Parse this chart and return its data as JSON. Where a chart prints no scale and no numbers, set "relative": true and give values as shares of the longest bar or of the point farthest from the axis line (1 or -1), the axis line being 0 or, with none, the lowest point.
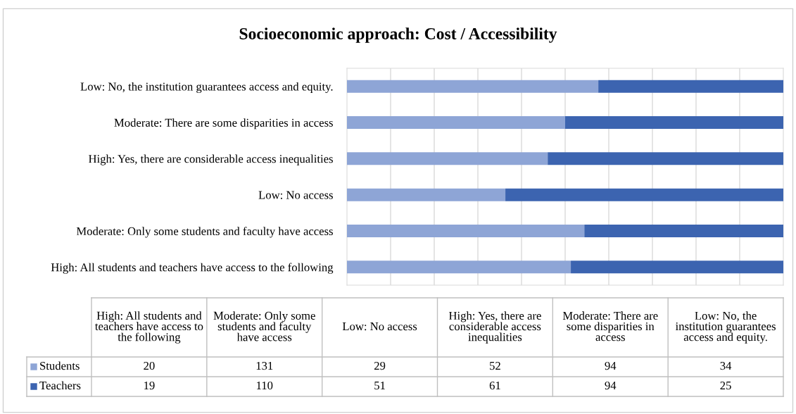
{
  "chart_data": [
    {
      "type": "bar",
      "orientation": "horizontal",
      "stacked": true,
      "relative": true,
      "title": "Socioeconomic approach: Cost / Accessibility",
      "categories": [
        "Low: No, the institution guarantees access and equity.",
        "Moderate: There are some disparities in access",
        "High: Yes, there are considerable access inequalities",
        "Low: No access",
        "Moderate: Only some students and faculty have access",
        "High: All students and teachers have access to the following"
      ],
      "series": [
        {
          "color": "#8ea5d6",
          "values": [
            0.576,
            0.5,
            0.46,
            0.363,
            0.544,
            0.513
          ]
        },
        {
          "color": "#3c64b0",
          "values": [
            0.424,
            0.5,
            0.54,
            0.637,
            0.456,
            0.487
          ]
        }
      ],
      "grid": "x"
    },
    {
      "type": "other",
      "categories": [
        "High: All students and teachers have access to the following",
        "Moderate: Only some students and faculty have access",
        "Low: No access",
        "High: Yes, there are considerable access inequalities",
        "Moderate: There are some disparities in access",
        "Low: No, the institution guarantees access and equity."
      ],
      "series": [
        {
          "name": "Students",
          "color": "#8ea5d6",
          "values": [
            20,
            131,
            29,
            52,
            94,
            34
          ]
        },
        {
          "name": "Teachers",
          "color": "#3c64b0",
          "values": [
            19,
            110,
            51,
            61,
            94,
            25
          ]
        }
      ],
      "data_labels": true,
      "legend": "left"
    }
  ]
}
